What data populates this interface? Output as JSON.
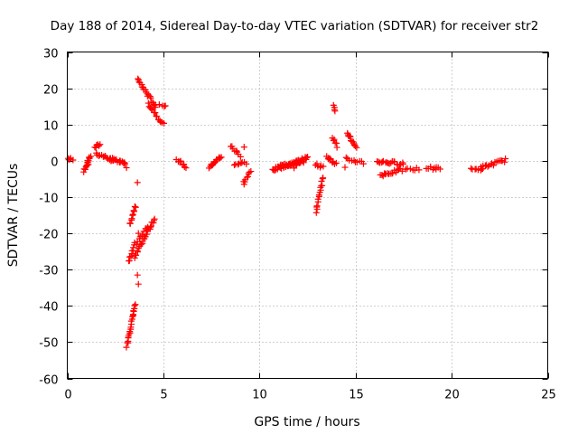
{
  "chart_data": {
    "type": "scatter",
    "title": "Day 188 of 2014, Sidereal Day-to-day VTEC variation (SDTVAR) for receiver str2",
    "xlabel": "GPS time / hours",
    "ylabel": "SDTVAR / TECUs",
    "xlim": [
      0,
      25
    ],
    "ylim": [
      -60,
      30
    ],
    "xticks": [
      0,
      5,
      10,
      15,
      20,
      25
    ],
    "yticks": [
      -60,
      -50,
      -40,
      -30,
      -20,
      -10,
      0,
      10,
      20,
      30
    ],
    "grid": true,
    "marker": "+",
    "color": "#ff0000",
    "segments": [
      {
        "x0": 0.05,
        "y0": 0.6,
        "x1": 0.2,
        "y1": 0.4,
        "n": 4
      },
      {
        "x0": 0.85,
        "y0": -3.0,
        "x1": 1.2,
        "y1": 1.5,
        "n": 10
      },
      {
        "x0": 1.0,
        "y0": -1.5,
        "x1": 1.15,
        "y1": 0.8,
        "n": 5
      },
      {
        "x0": 1.45,
        "y0": 3.5,
        "x1": 1.7,
        "y1": 4.6,
        "n": 6
      },
      {
        "x0": 1.5,
        "y0": 2.0,
        "x1": 2.4,
        "y1": 0.2,
        "n": 14
      },
      {
        "x0": 2.2,
        "y0": 0.5,
        "x1": 3.0,
        "y1": -0.8,
        "n": 12
      },
      {
        "x0": 2.7,
        "y0": 0.2,
        "x1": 3.1,
        "y1": -1.5,
        "n": 6
      },
      {
        "x0": 3.1,
        "y0": -51.0,
        "x1": 3.55,
        "y1": -39.5,
        "n": 22
      },
      {
        "x0": 3.2,
        "y0": -28.0,
        "x1": 3.5,
        "y1": -23.0,
        "n": 10
      },
      {
        "x0": 3.25,
        "y0": -17.5,
        "x1": 3.55,
        "y1": -12.5,
        "n": 10
      },
      {
        "x0": 3.5,
        "y0": -26.5,
        "x1": 4.55,
        "y1": -15.8,
        "n": 25
      },
      {
        "x0": 3.6,
        "y0": -23.0,
        "x1": 4.2,
        "y1": -18.0,
        "n": 10
      },
      {
        "x0": 3.65,
        "y0": 22.5,
        "x1": 4.6,
        "y1": 15.0,
        "n": 20
      },
      {
        "x0": 4.2,
        "y0": 15.8,
        "x1": 5.0,
        "y1": 10.0,
        "n": 14
      },
      {
        "x0": 4.6,
        "y0": 15.2,
        "x1": 5.1,
        "y1": 14.8,
        "n": 4
      },
      {
        "x0": 5.7,
        "y0": 0.5,
        "x1": 6.2,
        "y1": -1.8,
        "n": 8
      },
      {
        "x0": 7.4,
        "y0": -1.8,
        "x1": 8.0,
        "y1": 1.2,
        "n": 14
      },
      {
        "x0": 8.5,
        "y0": 4.0,
        "x1": 9.0,
        "y1": 1.5,
        "n": 8
      },
      {
        "x0": 8.7,
        "y0": -1.0,
        "x1": 9.3,
        "y1": -0.5,
        "n": 8
      },
      {
        "x0": 9.15,
        "y0": -6.0,
        "x1": 9.55,
        "y1": -3.0,
        "n": 8
      },
      {
        "x0": 10.7,
        "y0": -2.5,
        "x1": 12.5,
        "y1": 0.8,
        "n": 40
      },
      {
        "x0": 11.0,
        "y0": -1.5,
        "x1": 12.3,
        "y1": -0.5,
        "n": 20
      },
      {
        "x0": 12.95,
        "y0": -14.0,
        "x1": 13.3,
        "y1": -4.5,
        "n": 16
      },
      {
        "x0": 12.9,
        "y0": -1.0,
        "x1": 13.3,
        "y1": -1.8,
        "n": 6
      },
      {
        "x0": 13.5,
        "y0": 1.2,
        "x1": 14.0,
        "y1": -1.0,
        "n": 8
      },
      {
        "x0": 13.85,
        "y0": 15.3,
        "x1": 13.95,
        "y1": 14.0,
        "n": 4
      },
      {
        "x0": 13.8,
        "y0": 6.5,
        "x1": 14.05,
        "y1": 4.0,
        "n": 6
      },
      {
        "x0": 14.55,
        "y0": 8.0,
        "x1": 15.05,
        "y1": 3.2,
        "n": 12
      },
      {
        "x0": 14.5,
        "y0": 0.5,
        "x1": 15.4,
        "y1": -0.5,
        "n": 10
      },
      {
        "x0": 16.1,
        "y0": -0.2,
        "x1": 17.5,
        "y1": -0.8,
        "n": 20
      },
      {
        "x0": 16.3,
        "y0": -4.0,
        "x1": 17.4,
        "y1": -2.5,
        "n": 16
      },
      {
        "x0": 17.6,
        "y0": -2.5,
        "x1": 18.2,
        "y1": -2.3,
        "n": 6
      },
      {
        "x0": 18.7,
        "y0": -2.0,
        "x1": 19.4,
        "y1": -2.0,
        "n": 8
      },
      {
        "x0": 21.0,
        "y0": -2.5,
        "x1": 21.6,
        "y1": -2.2,
        "n": 7
      },
      {
        "x0": 21.5,
        "y0": -2.0,
        "x1": 22.8,
        "y1": 0.2,
        "n": 18
      }
    ],
    "points": [
      [
        0.3,
        0.2
      ],
      [
        1.1,
        -1.0
      ],
      [
        3.65,
        -6.0
      ],
      [
        3.7,
        -20.0
      ],
      [
        3.65,
        -31.5
      ],
      [
        3.7,
        -34.0
      ],
      [
        9.2,
        3.8
      ],
      [
        9.2,
        -6.5
      ],
      [
        13.6,
        0.8
      ],
      [
        14.45,
        -1.8
      ],
      [
        18.3,
        -2.5
      ],
      [
        5.05,
        15.0
      ],
      [
        11.8,
        -2.0
      ],
      [
        16.5,
        -3.5
      ],
      [
        19.2,
        -1.8
      ]
    ]
  }
}
